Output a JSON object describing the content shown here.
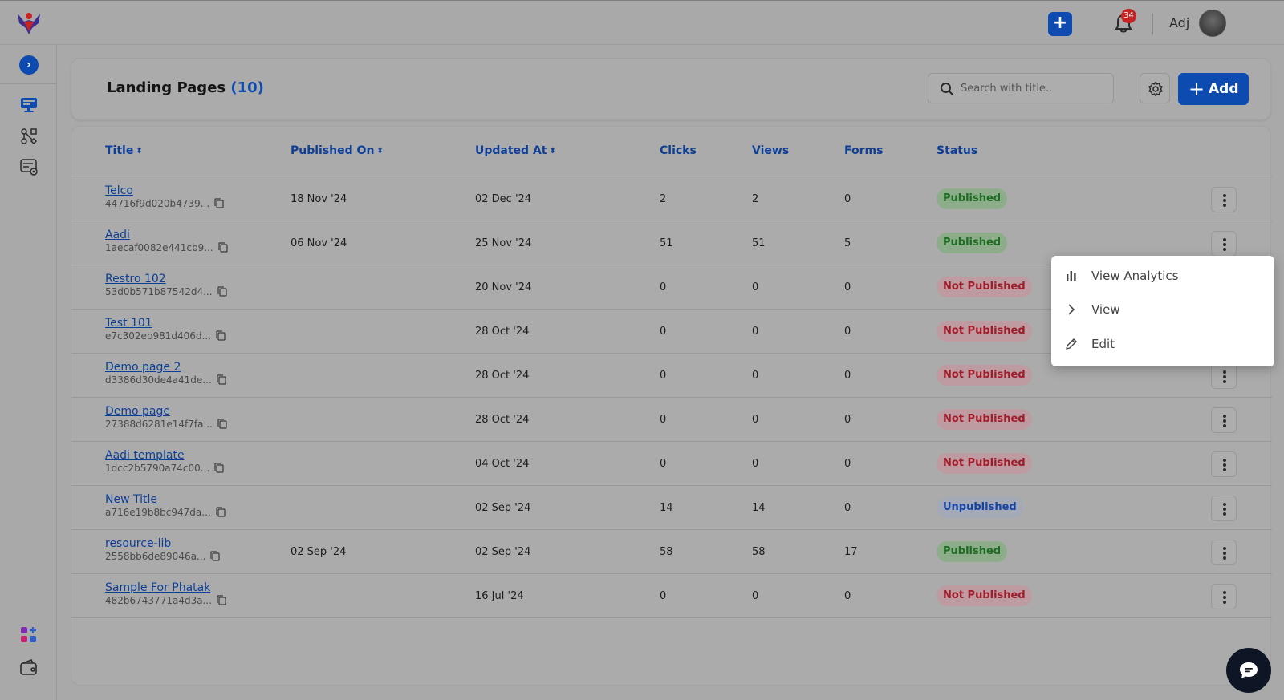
{
  "topbar": {
    "user_name": "Adj",
    "notification_count": "34",
    "add_label": "+"
  },
  "sidebar": {
    "toggle_label": "›",
    "items": [
      {
        "icon": "monitor-icon"
      },
      {
        "icon": "workflow-icon"
      },
      {
        "icon": "forms-settings-icon"
      }
    ],
    "bottom_items": [
      {
        "icon": "apps-add-icon"
      },
      {
        "icon": "wallet-icon"
      }
    ]
  },
  "header": {
    "title": "Landing Pages",
    "count": "(10)",
    "search_placeholder": "Search with title..",
    "add_label": "Add"
  },
  "table": {
    "columns": {
      "title": "Title",
      "published_on": "Published On",
      "updated_at": "Updated At",
      "clicks": "Clicks",
      "views": "Views",
      "forms": "Forms",
      "status": "Status"
    },
    "rows": [
      {
        "title": "Telco",
        "id": "44716f9d020b4739...",
        "published_on": "18 Nov '24",
        "updated_at": "02 Dec '24",
        "clicks": "2",
        "views": "2",
        "forms": "0",
        "status": "Published",
        "status_type": "published"
      },
      {
        "title": "Aadi",
        "id": "1aecaf0082e441cb9...",
        "published_on": "06 Nov '24",
        "updated_at": "25 Nov '24",
        "clicks": "51",
        "views": "51",
        "forms": "5",
        "status": "Published",
        "status_type": "published"
      },
      {
        "title": "Restro 102",
        "id": "53d0b571b87542d4...",
        "published_on": "",
        "updated_at": "20 Nov '24",
        "clicks": "0",
        "views": "0",
        "forms": "0",
        "status": "Not Published",
        "status_type": "notpub"
      },
      {
        "title": "Test 101",
        "id": "e7c302eb981d406d...",
        "published_on": "",
        "updated_at": "28 Oct '24",
        "clicks": "0",
        "views": "0",
        "forms": "0",
        "status": "Not Published",
        "status_type": "notpub"
      },
      {
        "title": "Demo page 2",
        "id": "d3386d30de4a41de...",
        "published_on": "",
        "updated_at": "28 Oct '24",
        "clicks": "0",
        "views": "0",
        "forms": "0",
        "status": "Not Published",
        "status_type": "notpub"
      },
      {
        "title": "Demo page",
        "id": "27388d6281e14f7fa...",
        "published_on": "",
        "updated_at": "28 Oct '24",
        "clicks": "0",
        "views": "0",
        "forms": "0",
        "status": "Not Published",
        "status_type": "notpub"
      },
      {
        "title": "Aadi template",
        "id": "1dcc2b5790a74c00...",
        "published_on": "",
        "updated_at": "04 Oct '24",
        "clicks": "0",
        "views": "0",
        "forms": "0",
        "status": "Not Published",
        "status_type": "notpub"
      },
      {
        "title": "New Title",
        "id": "a716e19b8bc947da...",
        "published_on": "",
        "updated_at": "02 Sep '24",
        "clicks": "14",
        "views": "14",
        "forms": "0",
        "status": "Unpublished",
        "status_type": "unpub"
      },
      {
        "title": "resource-lib",
        "id": "2558bb6de89046a...",
        "published_on": "02 Sep '24",
        "updated_at": "02 Sep '24",
        "clicks": "58",
        "views": "58",
        "forms": "17",
        "status": "Published",
        "status_type": "published"
      },
      {
        "title": "Sample For Phatak",
        "id": "482b6743771a4d3a...",
        "published_on": "",
        "updated_at": "16 Jul '24",
        "clicks": "0",
        "views": "0",
        "forms": "0",
        "status": "Not Published",
        "status_type": "notpub"
      }
    ]
  },
  "row_menu": {
    "items": [
      {
        "label": "View Analytics",
        "icon": "bar-chart-icon"
      },
      {
        "label": "View",
        "icon": "chevron-right-icon"
      },
      {
        "label": "Edit",
        "icon": "pencil-icon"
      }
    ]
  },
  "colors": {
    "accent": "#0d4bb0",
    "published": "#1d6d22",
    "not_published": "#a01c2a",
    "unpublished": "#1445a8"
  }
}
